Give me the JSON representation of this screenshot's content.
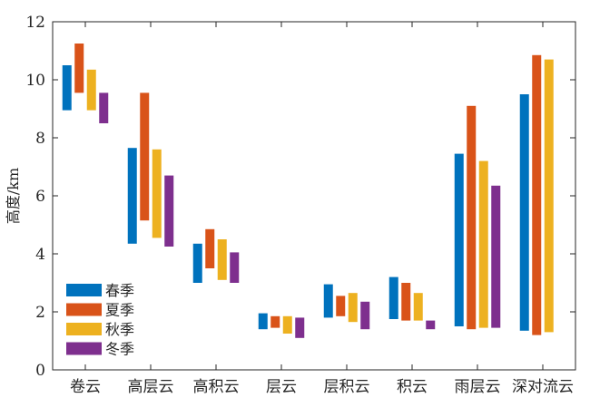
{
  "chart_data": {
    "type": "bar",
    "subtype": "floating-range",
    "title": "",
    "xlabel": "",
    "ylabel": "高度/km",
    "ylim": [
      0,
      12
    ],
    "yticks": [
      0,
      2,
      4,
      6,
      8,
      10,
      12
    ],
    "grid": false,
    "legend_position": "bottom-left",
    "categories": [
      "卷云",
      "高层云",
      "高积云",
      "层云",
      "层积云",
      "积云",
      "雨层云",
      "深对流云"
    ],
    "series": [
      {
        "name": "春季",
        "color": "#0072BD",
        "ranges": [
          [
            8.95,
            10.5
          ],
          [
            4.35,
            7.65
          ],
          [
            3.0,
            4.35
          ],
          [
            1.4,
            1.95
          ],
          [
            1.8,
            2.95
          ],
          [
            1.75,
            3.2
          ],
          [
            1.5,
            7.45
          ],
          [
            1.35,
            9.5
          ]
        ]
      },
      {
        "name": "夏季",
        "color": "#D95319",
        "ranges": [
          [
            9.55,
            11.25
          ],
          [
            5.15,
            9.55
          ],
          [
            3.5,
            4.85
          ],
          [
            1.45,
            1.85
          ],
          [
            1.85,
            2.55
          ],
          [
            1.7,
            3.0
          ],
          [
            1.4,
            9.1
          ],
          [
            1.2,
            10.85
          ]
        ]
      },
      {
        "name": "秋季",
        "color": "#EDB120",
        "ranges": [
          [
            8.95,
            10.35
          ],
          [
            4.55,
            7.6
          ],
          [
            3.1,
            4.5
          ],
          [
            1.25,
            1.85
          ],
          [
            1.65,
            2.65
          ],
          [
            1.7,
            2.65
          ],
          [
            1.45,
            7.2
          ],
          [
            1.3,
            10.7
          ]
        ]
      },
      {
        "name": "冬季",
        "color": "#7E2F8E",
        "ranges": [
          [
            8.5,
            9.55
          ],
          [
            4.25,
            6.7
          ],
          [
            3.0,
            4.05
          ],
          [
            1.1,
            1.8
          ],
          [
            1.4,
            2.35
          ],
          [
            1.4,
            1.7
          ],
          [
            1.45,
            6.35
          ],
          null
        ]
      }
    ]
  }
}
